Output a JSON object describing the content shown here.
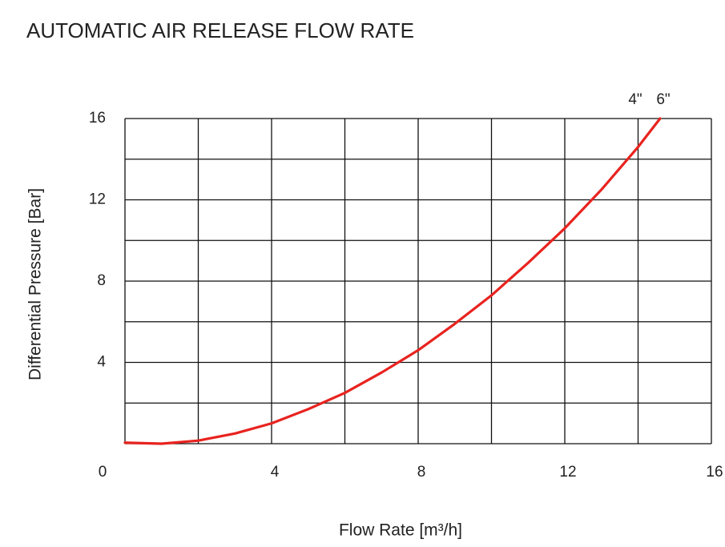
{
  "chart_data": {
    "type": "line",
    "title": "AUTOMATIC AIR RELEASE FLOW RATE",
    "x_label": "Flow Rate [m³/h]",
    "y_label": "Differential Pressure [Bar]",
    "annotations": [
      "4\"",
      "6\""
    ],
    "x": [
      0,
      1,
      2,
      3,
      4,
      5,
      6,
      7,
      8,
      9,
      10,
      11,
      12,
      13,
      14,
      14.6
    ],
    "values": [
      0.05,
      0,
      0.15,
      0.5,
      1.0,
      1.7,
      2.5,
      3.5,
      4.6,
      5.9,
      7.3,
      8.9,
      10.6,
      12.5,
      14.6,
      16
    ],
    "color": "#e8231f",
    "xlim": [
      0,
      16
    ],
    "ylim": [
      0,
      16
    ],
    "xticks": [
      0,
      4,
      8,
      12,
      16
    ],
    "yticks": [
      4,
      8,
      12,
      16
    ],
    "xgrid": [
      0,
      2,
      4,
      6,
      8,
      10,
      12,
      14,
      16
    ],
    "ygrid": [
      0,
      2,
      4,
      6,
      8,
      10,
      12,
      14,
      16
    ],
    "grid": true
  }
}
